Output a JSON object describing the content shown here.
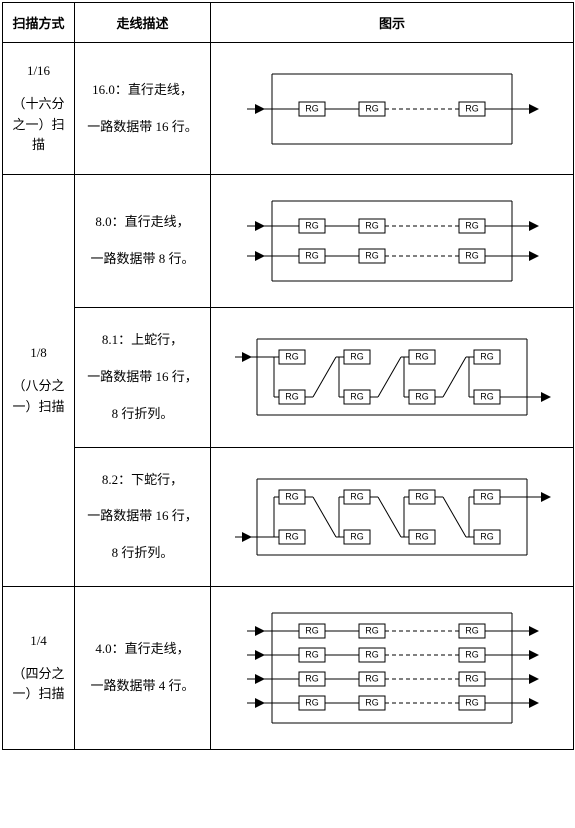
{
  "headers": {
    "mode": "扫描方式",
    "desc": "走线描述",
    "diag": "图示"
  },
  "rows": {
    "r1": {
      "mode_l1": "1/16",
      "mode_l2": "（十六分之一）扫描",
      "desc_l1": "16.0：直行走线，",
      "desc_l2": "一路数据带 16 行。"
    },
    "r2a": {
      "mode_l1": "1/8",
      "mode_l2": "（八分之一）扫描",
      "desc_l1": "8.0：直行走线，",
      "desc_l2": "一路数据带 8 行。"
    },
    "r2b": {
      "desc_l1": "8.1：上蛇行，",
      "desc_l2": "一路数据带 16 行，",
      "desc_l3": "8 行折列。"
    },
    "r2c": {
      "desc_l1": "8.2：下蛇行，",
      "desc_l2": "一路数据带 16 行，",
      "desc_l3": "8 行折列。"
    },
    "r3": {
      "mode_l1": "1/4",
      "mode_l2": "（四分之一）扫描",
      "desc_l1": "4.0：直行走线，",
      "desc_l2": "一路数据带 4 行。"
    }
  },
  "diagram": {
    "box_label": "RG",
    "stroke": "#000000",
    "fill": "#ffffff",
    "font_size": 9,
    "arrow_size": 5
  }
}
